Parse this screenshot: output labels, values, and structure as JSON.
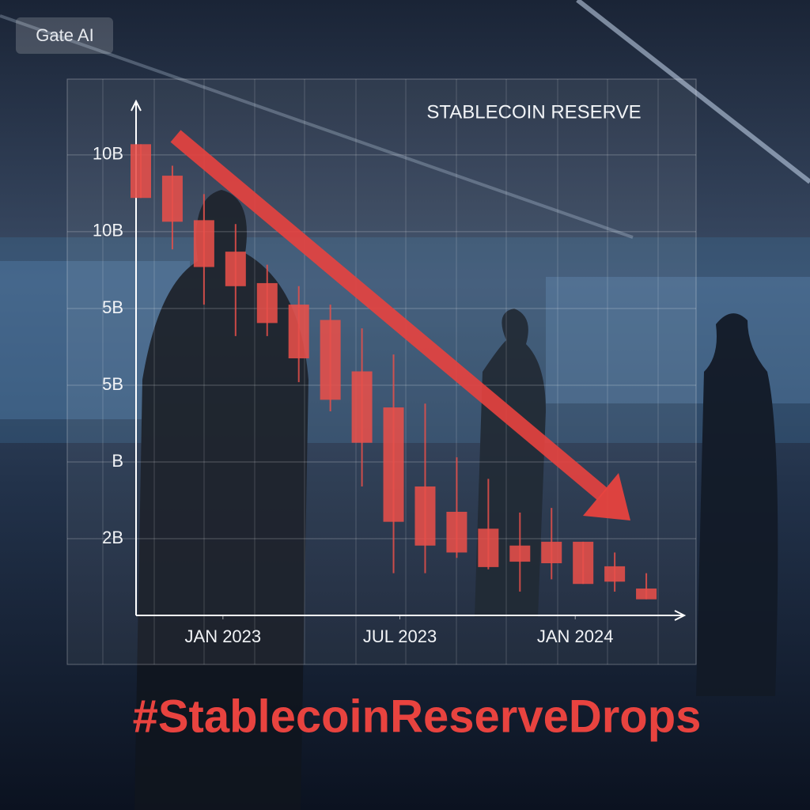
{
  "watermark": "Gate AI",
  "hashtag": "#StablecoinReserveDrops",
  "chart_data": {
    "type": "candlestick",
    "title": "STABLECOIN RESERVE",
    "color": "#e8504a",
    "categories": [
      null,
      null,
      null,
      null,
      null,
      null,
      null,
      null,
      null,
      null,
      null,
      null,
      null,
      null,
      null,
      null,
      null
    ],
    "open": [
      6.14,
      5.73,
      5.15,
      4.74,
      4.33,
      4.05,
      3.85,
      3.18,
      2.71,
      1.68,
      1.35,
      1.13,
      0.91,
      0.96,
      0.96,
      0.64,
      0.35
    ],
    "high": [
      6.14,
      5.86,
      5.49,
      5.1,
      4.57,
      4.29,
      4.05,
      3.74,
      3.4,
      2.76,
      2.06,
      1.78,
      1.34,
      1.4,
      0.96,
      0.82,
      0.55
    ],
    "low": [
      5.44,
      4.77,
      4.05,
      3.64,
      3.64,
      3.04,
      2.66,
      1.68,
      0.55,
      0.55,
      0.75,
      0.6,
      0.31,
      0.47,
      0.41,
      0.31,
      0.21
    ],
    "close": [
      5.44,
      5.13,
      4.54,
      4.29,
      3.81,
      3.35,
      2.81,
      2.25,
      1.22,
      0.91,
      0.82,
      0.63,
      0.7,
      0.68,
      0.41,
      0.44,
      0.21
    ],
    "xlim": [
      -0.15,
      17.2
    ],
    "xticks": [
      {
        "value": 2.6,
        "label": "JAN 2023"
      },
      {
        "value": 8.2,
        "label": "JUL 2023"
      },
      {
        "value": 13.75,
        "label": "JAN 2024"
      }
    ],
    "ylim": [
      0,
      6.7
    ],
    "yticks": [
      {
        "value": 1,
        "label": "2B"
      },
      {
        "value": 2,
        "label": "B"
      },
      {
        "value": 3,
        "label": "5B"
      },
      {
        "value": 4,
        "label": "5B"
      },
      {
        "value": 5,
        "label": "10B"
      },
      {
        "value": 6,
        "label": "10B"
      }
    ],
    "grid": true
  }
}
